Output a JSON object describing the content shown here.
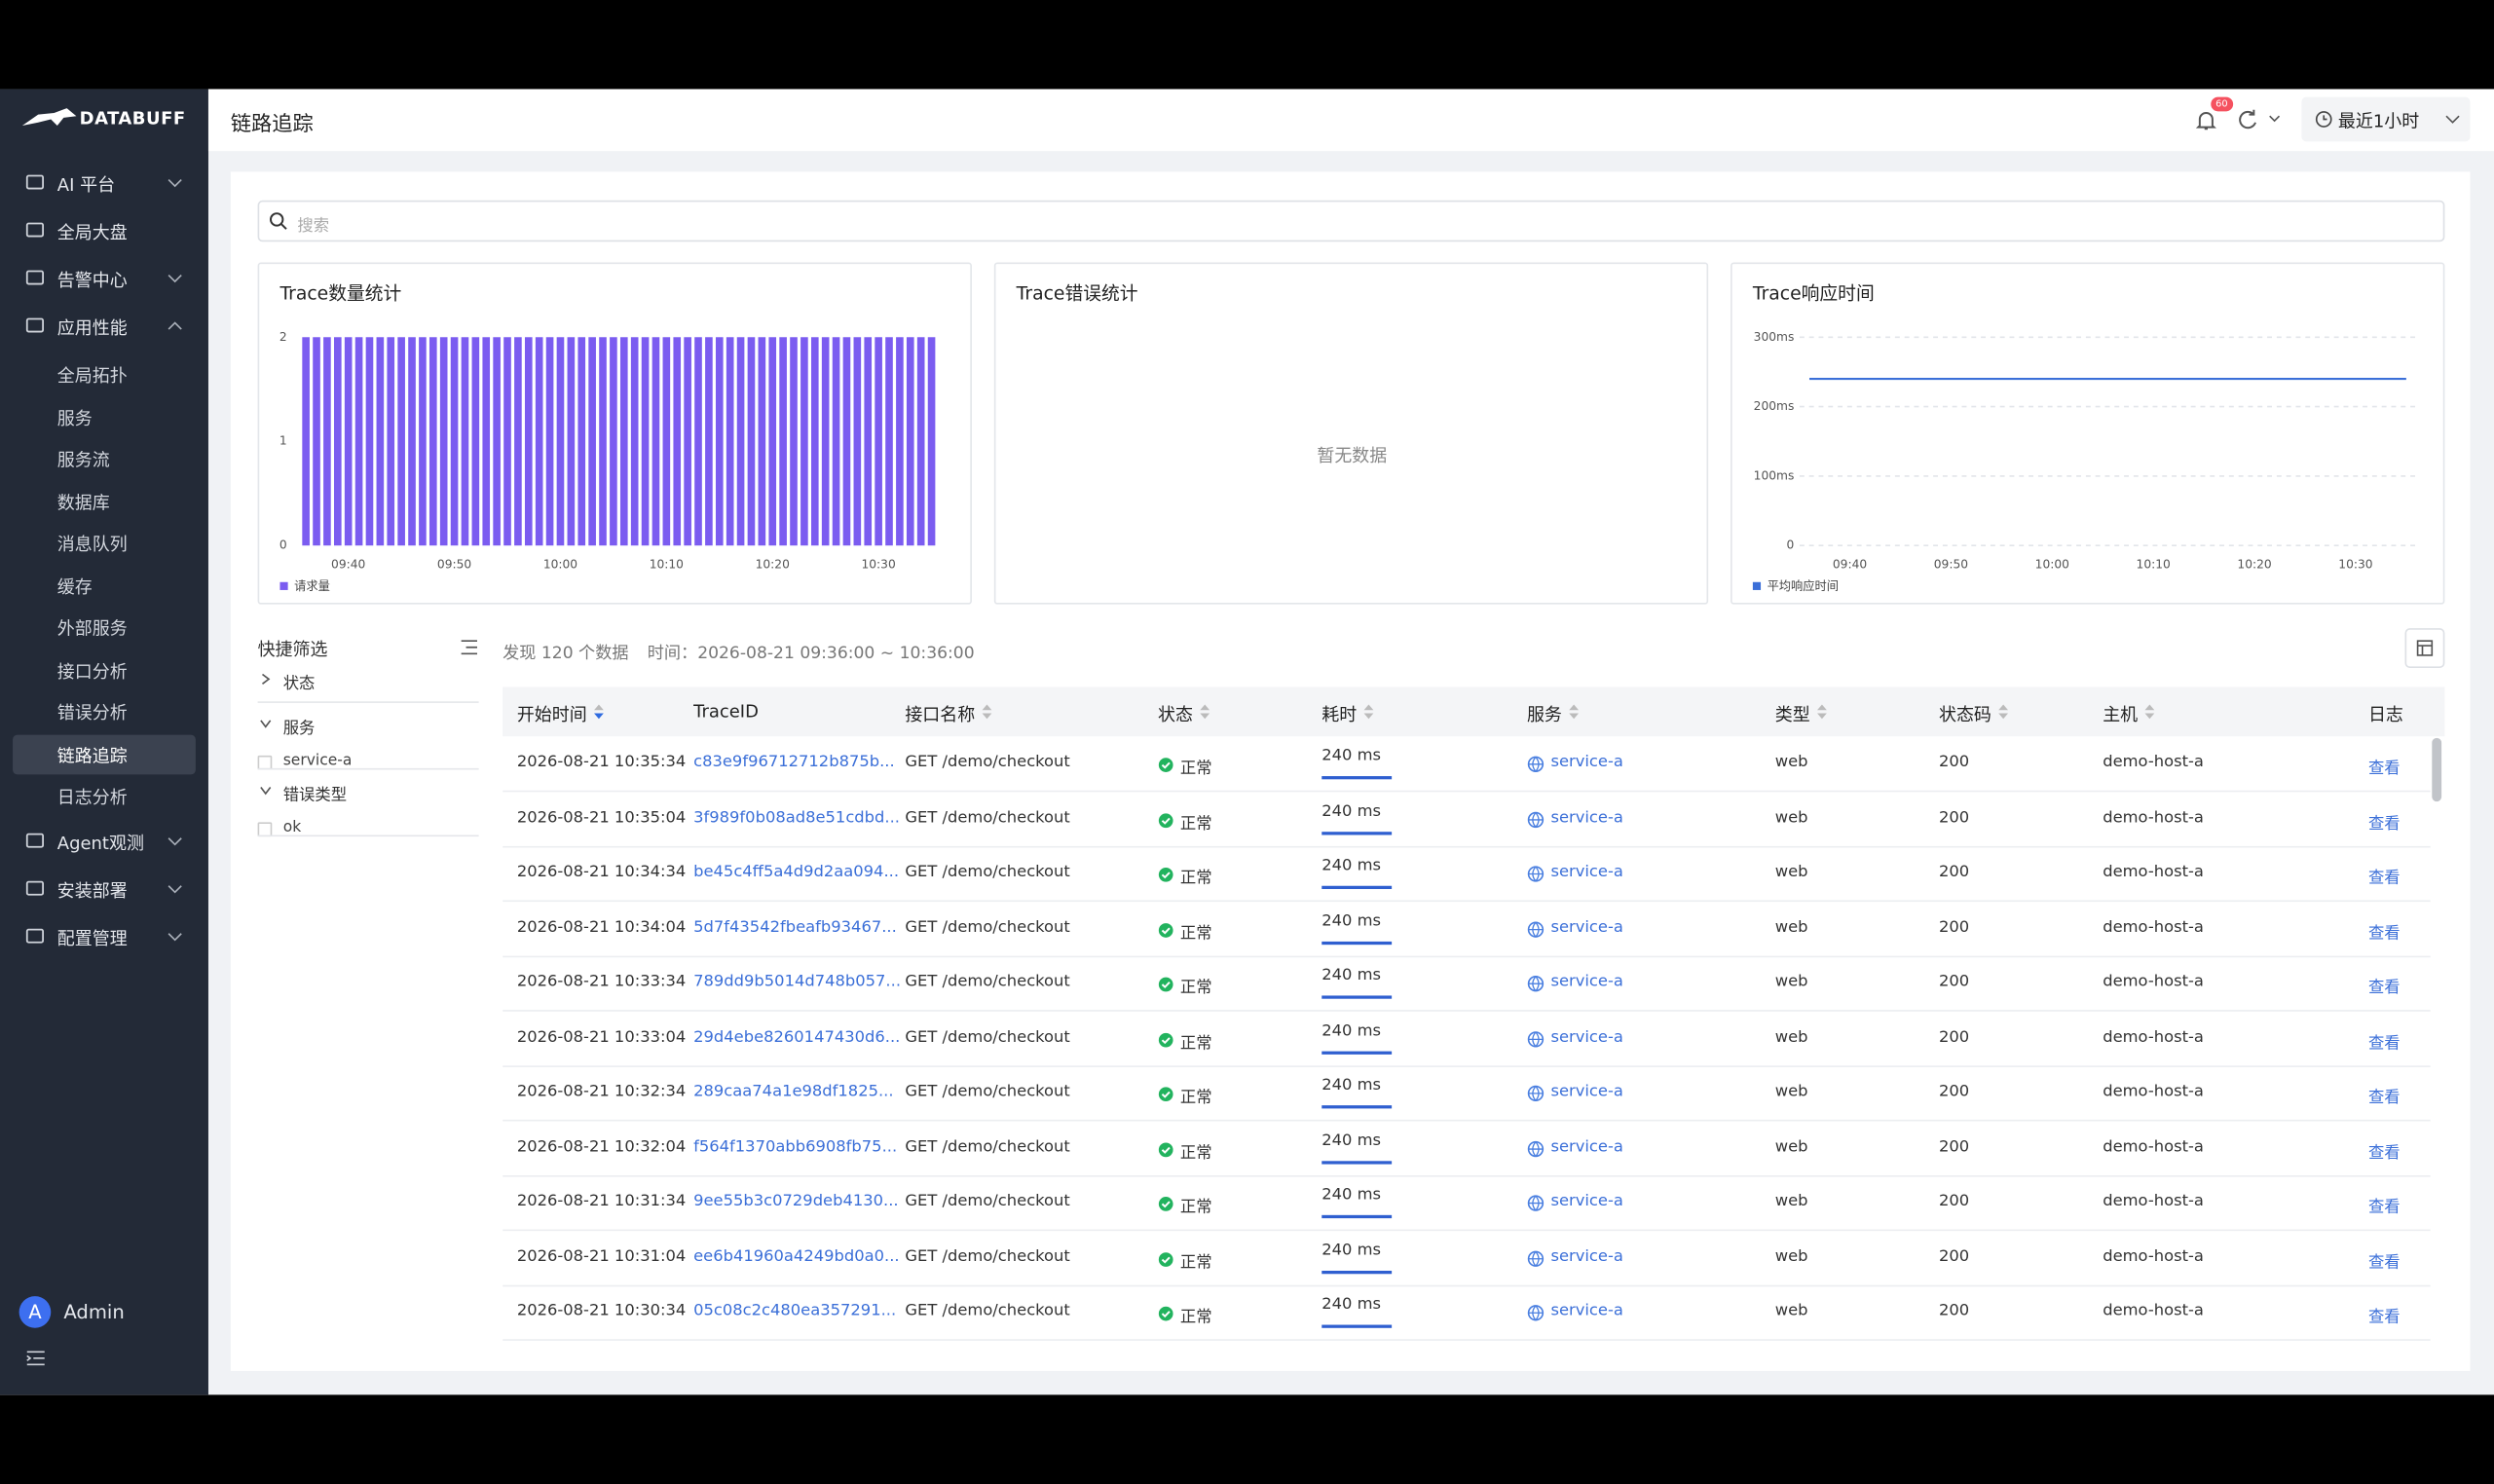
{
  "sidebar": {
    "brand": "DATABUFF",
    "menu": [
      {
        "label": "AI 平台",
        "expandable": true
      },
      {
        "label": "全局大盘"
      },
      {
        "label": "告警中心",
        "expandable": true
      },
      {
        "label": "应用性能",
        "expandable": true,
        "expanded": true,
        "children": [
          {
            "label": "全局拓扑"
          },
          {
            "label": "服务"
          },
          {
            "label": "服务流"
          },
          {
            "label": "数据库"
          },
          {
            "label": "消息队列"
          },
          {
            "label": "缓存"
          },
          {
            "label": "外部服务"
          },
          {
            "label": "接口分析"
          },
          {
            "label": "错误分析"
          },
          {
            "label": "链路追踪",
            "active": true
          },
          {
            "label": "日志分析"
          }
        ]
      },
      {
        "label": "Agent观测",
        "expandable": true
      },
      {
        "label": "安装部署",
        "expandable": true
      },
      {
        "label": "配置管理",
        "expandable": true
      }
    ],
    "avatar": "A",
    "user": "Admin"
  },
  "header": {
    "title": "链路追踪",
    "badge": "60",
    "time_range": "最近1小时"
  },
  "search": {
    "placeholder": "搜索"
  },
  "chart_data": [
    {
      "type": "bar",
      "title": "Trace数量统计",
      "categories": [
        null,
        null,
        null,
        null,
        "09:40",
        null,
        null,
        null,
        null,
        null,
        null,
        null,
        null,
        null,
        "09:50",
        null,
        null,
        null,
        null,
        null,
        null,
        null,
        null,
        null,
        "10:00",
        null,
        null,
        null,
        null,
        null,
        null,
        null,
        null,
        null,
        "10:10",
        null,
        null,
        null,
        null,
        null,
        null,
        null,
        null,
        null,
        "10:20",
        null,
        null,
        null,
        null,
        null,
        null,
        null,
        null,
        null,
        "10:30",
        null,
        null,
        null,
        null,
        null
      ],
      "series": [
        {
          "name": "请求量",
          "color": "#7b5cf0",
          "values": [
            2,
            2,
            2,
            2,
            2,
            2,
            2,
            2,
            2,
            2,
            2,
            2,
            2,
            2,
            2,
            2,
            2,
            2,
            2,
            2,
            2,
            2,
            2,
            2,
            2,
            2,
            2,
            2,
            2,
            2,
            2,
            2,
            2,
            2,
            2,
            2,
            2,
            2,
            2,
            2,
            2,
            2,
            2,
            2,
            2,
            2,
            2,
            2,
            2,
            2,
            2,
            2,
            2,
            2,
            2,
            2,
            2,
            2,
            2,
            2
          ]
        }
      ],
      "ylim": [
        0,
        2
      ],
      "yticks": [
        0,
        1,
        2
      ],
      "grid": false
    },
    {
      "type": "empty",
      "title": "Trace错误统计",
      "empty_text": "暂无数据"
    },
    {
      "type": "line",
      "title": "Trace响应时间",
      "categories": [
        null,
        null,
        null,
        null,
        "09:40",
        null,
        null,
        null,
        null,
        null,
        null,
        null,
        null,
        null,
        "09:50",
        null,
        null,
        null,
        null,
        null,
        null,
        null,
        null,
        null,
        "10:00",
        null,
        null,
        null,
        null,
        null,
        null,
        null,
        null,
        null,
        "10:10",
        null,
        null,
        null,
        null,
        null,
        null,
        null,
        null,
        null,
        "10:20",
        null,
        null,
        null,
        null,
        null,
        null,
        null,
        null,
        null,
        "10:30",
        null,
        null,
        null,
        null,
        null
      ],
      "series": [
        {
          "name": "平均响应时间",
          "color": "#3b6fd8",
          "values": [
            240,
            240,
            240,
            240,
            240,
            240,
            240,
            240,
            240,
            240,
            240,
            240,
            240,
            240,
            240,
            240,
            240,
            240,
            240,
            240,
            240,
            240,
            240,
            240,
            240,
            240,
            240,
            240,
            240,
            240,
            240,
            240,
            240,
            240,
            240,
            240,
            240,
            240,
            240,
            240,
            240,
            240,
            240,
            240,
            240,
            240,
            240,
            240,
            240,
            240,
            240,
            240,
            240,
            240,
            240,
            240,
            240,
            240,
            240,
            240
          ]
        }
      ],
      "ylim": [
        0,
        300
      ],
      "yticks": [
        0,
        {
          "value": 100,
          "label": "100ms"
        },
        {
          "value": 200,
          "label": "200ms"
        },
        {
          "value": 300,
          "label": "300ms"
        }
      ],
      "grid": true
    }
  ],
  "filters": {
    "title": "快捷筛选",
    "groups": [
      {
        "label": "状态"
      },
      {
        "label": "服务",
        "expanded": true,
        "options": [
          "service-a"
        ]
      },
      {
        "label": "错误类型",
        "expanded": true,
        "options": [
          "ok"
        ]
      }
    ]
  },
  "summary": {
    "count": "发现 120 个数据",
    "time": "时间：2026-08-21 09:36:00 ~ 10:36:00"
  },
  "table": {
    "columns": [
      {
        "label": "开始时间",
        "sortable": true,
        "sorted": true
      },
      {
        "label": "TraceID"
      },
      {
        "label": "接口名称",
        "sortable": true
      },
      {
        "label": "状态",
        "sortable": true
      },
      {
        "label": "耗时",
        "sortable": true
      },
      {
        "label": "服务",
        "sortable": true
      },
      {
        "label": "类型",
        "sortable": true
      },
      {
        "label": "状态码",
        "sortable": true
      },
      {
        "label": "主机",
        "sortable": true
      },
      {
        "label": "日志"
      }
    ],
    "rows": [
      [
        "2026-08-21 10:35:34",
        "c83e9f96712712b875b...",
        "GET /demo/checkout",
        "正常",
        "240 ms",
        "service-a",
        "web",
        "200",
        "demo-host-a",
        "查看"
      ],
      [
        "2026-08-21 10:35:04",
        "3f989f0b08ad8e51cdbd...",
        "GET /demo/checkout",
        "正常",
        "240 ms",
        "service-a",
        "web",
        "200",
        "demo-host-a",
        "查看"
      ],
      [
        "2026-08-21 10:34:34",
        "be45c4ff5a4d9d2aa094...",
        "GET /demo/checkout",
        "正常",
        "240 ms",
        "service-a",
        "web",
        "200",
        "demo-host-a",
        "查看"
      ],
      [
        "2026-08-21 10:34:04",
        "5d7f43542fbeafb93467...",
        "GET /demo/checkout",
        "正常",
        "240 ms",
        "service-a",
        "web",
        "200",
        "demo-host-a",
        "查看"
      ],
      [
        "2026-08-21 10:33:34",
        "789dd9b5014d748b057...",
        "GET /demo/checkout",
        "正常",
        "240 ms",
        "service-a",
        "web",
        "200",
        "demo-host-a",
        "查看"
      ],
      [
        "2026-08-21 10:33:04",
        "29d4ebe8260147430d6...",
        "GET /demo/checkout",
        "正常",
        "240 ms",
        "service-a",
        "web",
        "200",
        "demo-host-a",
        "查看"
      ],
      [
        "2026-08-21 10:32:34",
        "289caa74a1e98df1825...",
        "GET /demo/checkout",
        "正常",
        "240 ms",
        "service-a",
        "web",
        "200",
        "demo-host-a",
        "查看"
      ],
      [
        "2026-08-21 10:32:04",
        "f564f1370abb6908fb75...",
        "GET /demo/checkout",
        "正常",
        "240 ms",
        "service-a",
        "web",
        "200",
        "demo-host-a",
        "查看"
      ],
      [
        "2026-08-21 10:31:34",
        "9ee55b3c0729deb4130...",
        "GET /demo/checkout",
        "正常",
        "240 ms",
        "service-a",
        "web",
        "200",
        "demo-host-a",
        "查看"
      ],
      [
        "2026-08-21 10:31:04",
        "ee6b41960a4249bd0a0...",
        "GET /demo/checkout",
        "正常",
        "240 ms",
        "service-a",
        "web",
        "200",
        "demo-host-a",
        "查看"
      ],
      [
        "2026-08-21 10:30:34",
        "05c08c2c480ea357291...",
        "GET /demo/checkout",
        "正常",
        "240 ms",
        "service-a",
        "web",
        "200",
        "demo-host-a",
        "查看"
      ]
    ]
  }
}
